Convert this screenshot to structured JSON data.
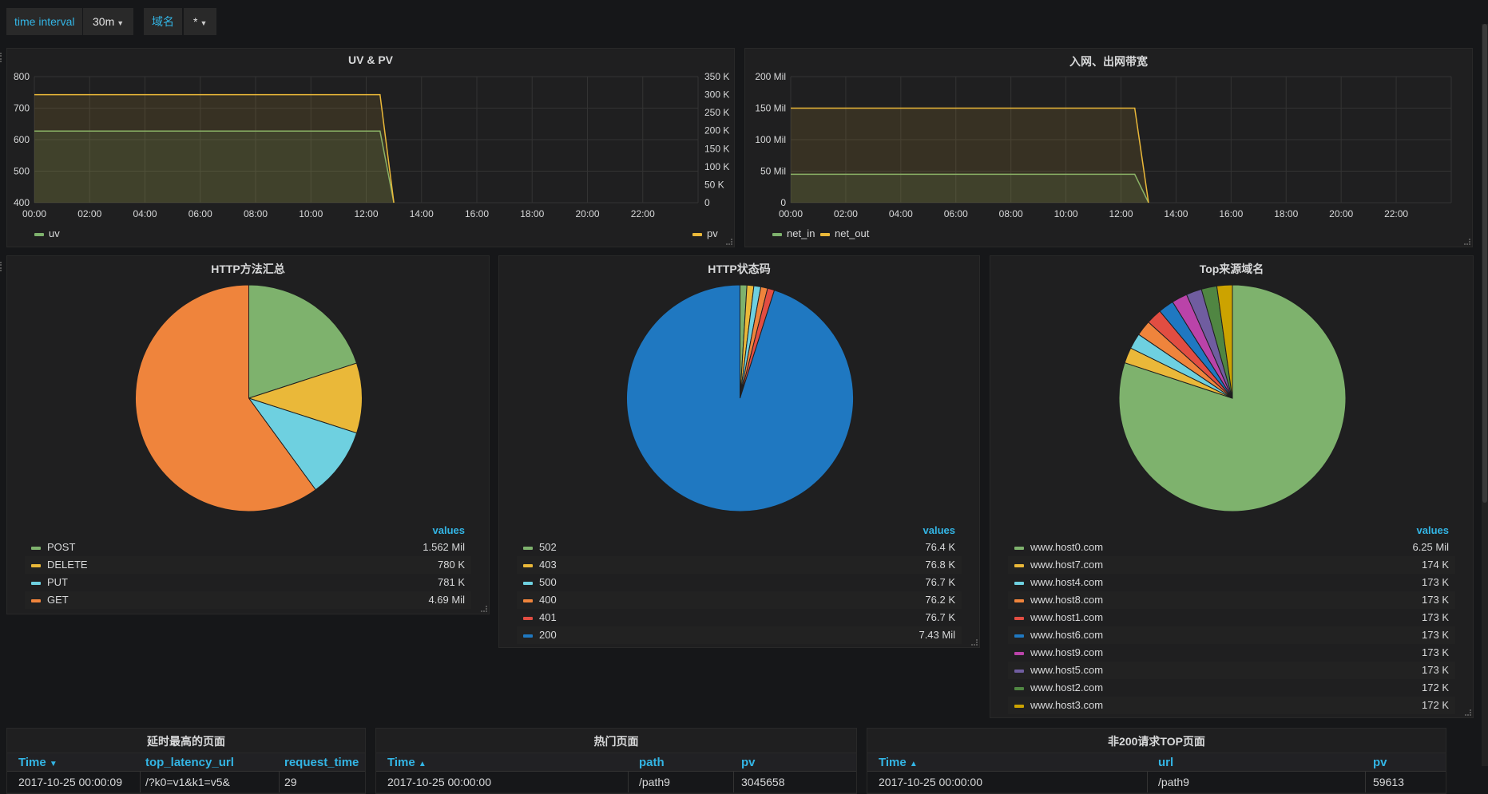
{
  "toolbar": {
    "time_interval_label": "time interval",
    "time_interval_value": "30m",
    "domain_label": "域名",
    "domain_value": "*"
  },
  "panels": {
    "uvpv": {
      "title": "UV & PV",
      "y_left_ticks": [
        "800",
        "700",
        "600",
        "500",
        "400"
      ],
      "y_right_ticks": [
        "350 K",
        "300 K",
        "250 K",
        "200 K",
        "150 K",
        "100 K",
        "50 K",
        "0"
      ],
      "x_ticks": [
        "00:00",
        "02:00",
        "04:00",
        "06:00",
        "08:00",
        "10:00",
        "12:00",
        "14:00",
        "16:00",
        "18:00",
        "20:00",
        "22:00"
      ],
      "legend_left": "uv",
      "legend_right": "pv"
    },
    "net": {
      "title": "入网、出网带宽",
      "y_ticks": [
        "200 Mil",
        "150 Mil",
        "100 Mil",
        "50 Mil",
        "0"
      ],
      "x_ticks": [
        "00:00",
        "02:00",
        "04:00",
        "06:00",
        "08:00",
        "10:00",
        "12:00",
        "14:00",
        "16:00",
        "18:00",
        "20:00",
        "22:00"
      ],
      "legend": [
        "net_in",
        "net_out"
      ]
    },
    "methods": {
      "title": "HTTP方法汇总",
      "values_header": "values",
      "rows": [
        {
          "label": "POST",
          "value": "1.562 Mil",
          "color": "#7eb26d"
        },
        {
          "label": "DELETE",
          "value": "780 K",
          "color": "#eab839"
        },
        {
          "label": "PUT",
          "value": "781 K",
          "color": "#6ed0e0"
        },
        {
          "label": "GET",
          "value": "4.69 Mil",
          "color": "#ef843c"
        }
      ]
    },
    "status": {
      "title": "HTTP状态码",
      "values_header": "values",
      "rows": [
        {
          "label": "502",
          "value": "76.4 K",
          "color": "#7eb26d"
        },
        {
          "label": "403",
          "value": "76.8 K",
          "color": "#eab839"
        },
        {
          "label": "500",
          "value": "76.7 K",
          "color": "#6ed0e0"
        },
        {
          "label": "400",
          "value": "76.2 K",
          "color": "#ef843c"
        },
        {
          "label": "401",
          "value": "76.7 K",
          "color": "#e24d42"
        },
        {
          "label": "200",
          "value": "7.43 Mil",
          "color": "#1f78c1"
        }
      ]
    },
    "hosts": {
      "title": "Top来源域名",
      "values_header": "values",
      "rows": [
        {
          "label": "www.host0.com",
          "value": "6.25 Mil",
          "color": "#7eb26d"
        },
        {
          "label": "www.host7.com",
          "value": "174 K",
          "color": "#eab839"
        },
        {
          "label": "www.host4.com",
          "value": "173 K",
          "color": "#6ed0e0"
        },
        {
          "label": "www.host8.com",
          "value": "173 K",
          "color": "#ef843c"
        },
        {
          "label": "www.host1.com",
          "value": "173 K",
          "color": "#e24d42"
        },
        {
          "label": "www.host6.com",
          "value": "173 K",
          "color": "#1f78c1"
        },
        {
          "label": "www.host9.com",
          "value": "173 K",
          "color": "#ba43a9"
        },
        {
          "label": "www.host5.com",
          "value": "173 K",
          "color": "#705da0"
        },
        {
          "label": "www.host2.com",
          "value": "172 K",
          "color": "#508642"
        },
        {
          "label": "www.host3.com",
          "value": "172 K",
          "color": "#cca300"
        }
      ]
    },
    "latency": {
      "title": "延时最高的页面",
      "columns": [
        "Time",
        "top_latency_url",
        "request_time"
      ],
      "row": [
        "2017-10-25 00:00:09",
        "/?k0=v1&k1=v5&",
        "29"
      ]
    },
    "hot": {
      "title": "热门页面",
      "columns": [
        "Time",
        "path",
        "pv"
      ],
      "row": [
        "2017-10-25 00:00:00",
        "/path9",
        "3045658"
      ]
    },
    "non200": {
      "title": "非200请求TOP页面",
      "columns": [
        "Time",
        "url",
        "pv"
      ],
      "row": [
        "2017-10-25 00:00:00",
        "/path9",
        "59613"
      ]
    }
  },
  "chart_data": [
    {
      "type": "line",
      "title": "UV & PV",
      "x_range": [
        "00:00",
        "24:00"
      ],
      "series": [
        {
          "name": "uv",
          "axis": "left",
          "color": "#7eb26d",
          "points": [
            [
              "00:00",
              627
            ],
            [
              "12:30",
              627
            ],
            [
              "13:00",
              400
            ]
          ]
        },
        {
          "name": "pv",
          "axis": "right",
          "color": "#eab839",
          "points": [
            [
              "00:00",
              300000
            ],
            [
              "12:30",
              300000
            ],
            [
              "13:00",
              0
            ]
          ]
        }
      ],
      "y_left_range": [
        400,
        800
      ],
      "y_right_range": [
        0,
        350000
      ]
    },
    {
      "type": "line",
      "title": "入网、出网带宽",
      "x_range": [
        "00:00",
        "24:00"
      ],
      "series": [
        {
          "name": "net_in",
          "color": "#7eb26d",
          "points": [
            [
              "00:00",
              45000000
            ],
            [
              "12:30",
              45000000
            ],
            [
              "13:00",
              0
            ]
          ]
        },
        {
          "name": "net_out",
          "color": "#eab839",
          "points": [
            [
              "00:00",
              150000000
            ],
            [
              "12:30",
              150000000
            ],
            [
              "13:00",
              0
            ]
          ]
        }
      ],
      "y_range": [
        0,
        200000000
      ]
    },
    {
      "type": "pie",
      "title": "HTTP方法汇总",
      "slices": [
        {
          "label": "POST",
          "value": 1562000,
          "color": "#7eb26d"
        },
        {
          "label": "DELETE",
          "value": 780000,
          "color": "#eab839"
        },
        {
          "label": "PUT",
          "value": 781000,
          "color": "#6ed0e0"
        },
        {
          "label": "GET",
          "value": 4690000,
          "color": "#ef843c"
        }
      ]
    },
    {
      "type": "pie",
      "title": "HTTP状态码",
      "slices": [
        {
          "label": "502",
          "value": 76400,
          "color": "#7eb26d"
        },
        {
          "label": "403",
          "value": 76800,
          "color": "#eab839"
        },
        {
          "label": "500",
          "value": 76700,
          "color": "#6ed0e0"
        },
        {
          "label": "400",
          "value": 76200,
          "color": "#ef843c"
        },
        {
          "label": "401",
          "value": 76700,
          "color": "#e24d42"
        },
        {
          "label": "200",
          "value": 7430000,
          "color": "#1f78c1"
        }
      ]
    },
    {
      "type": "pie",
      "title": "Top来源域名",
      "slices": [
        {
          "label": "www.host0.com",
          "value": 6250000,
          "color": "#7eb26d"
        },
        {
          "label": "www.host7.com",
          "value": 174000,
          "color": "#eab839"
        },
        {
          "label": "www.host4.com",
          "value": 173000,
          "color": "#6ed0e0"
        },
        {
          "label": "www.host8.com",
          "value": 173000,
          "color": "#ef843c"
        },
        {
          "label": "www.host1.com",
          "value": 173000,
          "color": "#e24d42"
        },
        {
          "label": "www.host6.com",
          "value": 173000,
          "color": "#1f78c1"
        },
        {
          "label": "www.host9.com",
          "value": 173000,
          "color": "#ba43a9"
        },
        {
          "label": "www.host5.com",
          "value": 173000,
          "color": "#705da0"
        },
        {
          "label": "www.host2.com",
          "value": 172000,
          "color": "#508642"
        },
        {
          "label": "www.host3.com",
          "value": 172000,
          "color": "#cca300"
        }
      ]
    }
  ]
}
